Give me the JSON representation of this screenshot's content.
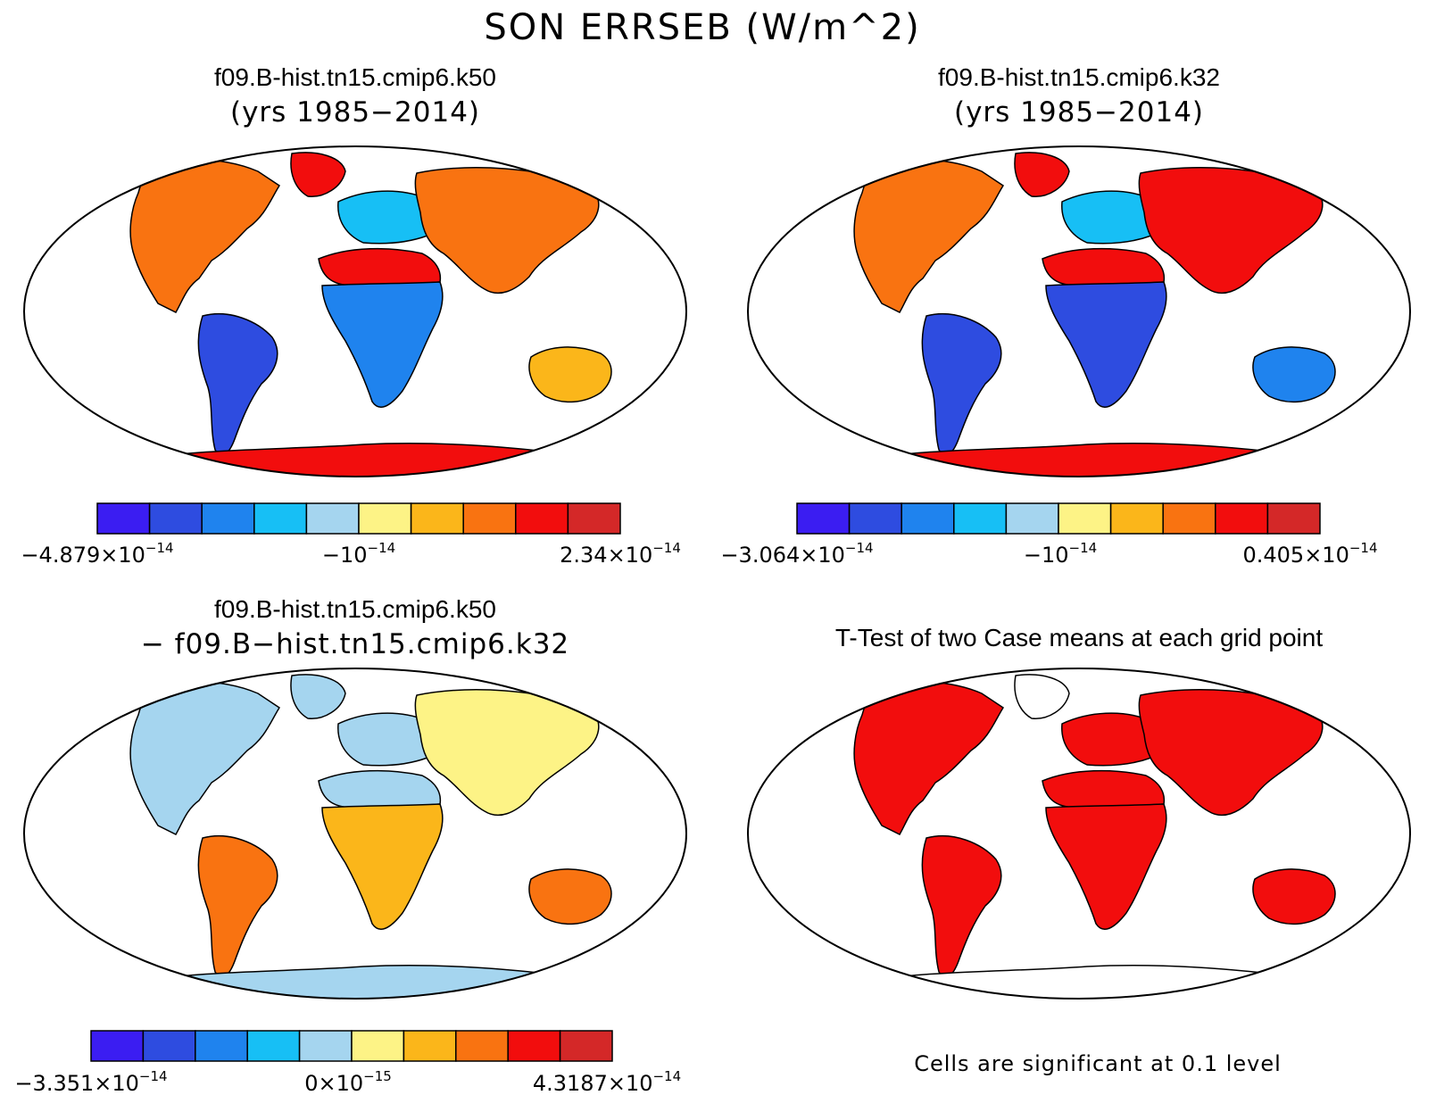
{
  "figure": {
    "title": "SON ERRSEB (W/m^2)",
    "palette": [
      "#3b1df2",
      "#2e4ce0",
      "#1f83ee",
      "#17bff5",
      "#a5d5ef",
      "#fdf386",
      "#fbb61a",
      "#f97311",
      "#f20d0d",
      "#d42828"
    ],
    "continent_colors": {
      "panel_k50": {
        "north_america": "#f97311",
        "south_america": "#2e4ce0",
        "africa_north": "#f20d0d",
        "africa_south": "#1f83ee",
        "europe": "#17bff5",
        "asia": "#f97311",
        "australia": "#fbb61a",
        "antarctica": "#f20d0d",
        "greenland": "#f20d0d"
      },
      "panel_k32": {
        "north_america": "#f97311",
        "south_america": "#2e4ce0",
        "africa_north": "#f20d0d",
        "africa_south": "#2e4ce0",
        "europe": "#17bff5",
        "asia": "#f20d0d",
        "australia": "#1f83ee",
        "antarctica": "#f20d0d",
        "greenland": "#f20d0d"
      },
      "panel_diff": {
        "north_america": "#a5d5ef",
        "south_america": "#f97311",
        "africa_north": "#a5d5ef",
        "africa_south": "#fbb61a",
        "europe": "#a5d5ef",
        "asia": "#fdf386",
        "australia": "#f97311",
        "antarctica": "#a5d5ef",
        "greenland": "#a5d5ef"
      },
      "panel_ttest": {
        "north_america": "#f20d0d",
        "south_america": "#f20d0d",
        "africa_north": "#f20d0d",
        "africa_south": "#f20d0d",
        "europe": "#f20d0d",
        "asia": "#f20d0d",
        "australia": "#f20d0d",
        "antarctica": "#ffffff",
        "greenland": "#ffffff"
      }
    }
  },
  "panels": [
    {
      "id": "k50",
      "case_title": "f09.B-hist.tn15.cmip6.k50",
      "subtitle": "(yrs 1985−2014)",
      "colorbar": {
        "min": {
          "mantissa": "−4.879×10",
          "exp": "−14"
        },
        "mid": {
          "mantissa": "−10",
          "exp": "−14"
        },
        "max": {
          "mantissa": "2.34×10",
          "exp": "−14"
        }
      }
    },
    {
      "id": "k32",
      "case_title": "f09.B-hist.tn15.cmip6.k32",
      "subtitle": "(yrs 1985−2014)",
      "colorbar": {
        "min": {
          "mantissa": "−3.064×10",
          "exp": "−14"
        },
        "mid": {
          "mantissa": "−10",
          "exp": "−14"
        },
        "max": {
          "mantissa": "0.405×10",
          "exp": "−14"
        }
      }
    },
    {
      "id": "diff",
      "case_title": "f09.B-hist.tn15.cmip6.k50",
      "subtitle": "− f09.B−hist.tn15.cmip6.k32",
      "colorbar": {
        "min": {
          "mantissa": "−3.351×10",
          "exp": "−14"
        },
        "mid": {
          "mantissa": "0×10",
          "exp": "−15"
        },
        "max": {
          "mantissa": "4.3187×10",
          "exp": "−14"
        }
      }
    },
    {
      "id": "ttest",
      "case_title": "T-Test of two Case means at each grid point",
      "note": "Cells are significant at 0.1 level"
    }
  ]
}
